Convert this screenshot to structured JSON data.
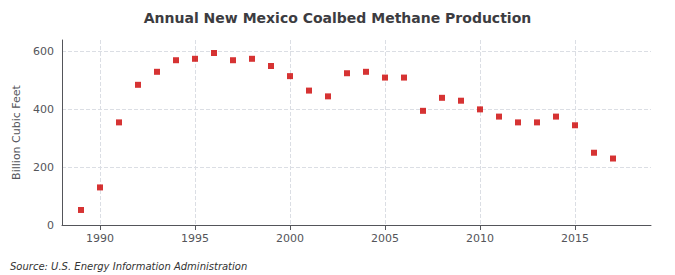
{
  "chart_data": {
    "type": "scatter",
    "title": "Annual New Mexico Coalbed Methane Production",
    "ylabel": "Billion Cubic Feet",
    "source": "Source: U.S. Energy Information Administration",
    "x": [
      1989,
      1990,
      1991,
      1992,
      1993,
      1994,
      1995,
      1996,
      1997,
      1998,
      1999,
      2000,
      2001,
      2002,
      2003,
      2004,
      2005,
      2006,
      2007,
      2008,
      2009,
      2010,
      2011,
      2012,
      2013,
      2014,
      2015,
      2016,
      2017
    ],
    "values": [
      52,
      130,
      355,
      485,
      530,
      570,
      575,
      595,
      570,
      575,
      550,
      515,
      465,
      445,
      525,
      530,
      510,
      510,
      395,
      440,
      430,
      400,
      375,
      355,
      355,
      375,
      345,
      250,
      230
    ],
    "color": "#cc0000",
    "marker": "square",
    "xlim": [
      1988,
      2019
    ],
    "ylim": [
      0,
      640
    ],
    "xticks": [
      1990,
      1995,
      2000,
      2005,
      2010,
      2015
    ],
    "yticks": [
      0,
      200,
      400,
      600
    ],
    "grid": true
  }
}
